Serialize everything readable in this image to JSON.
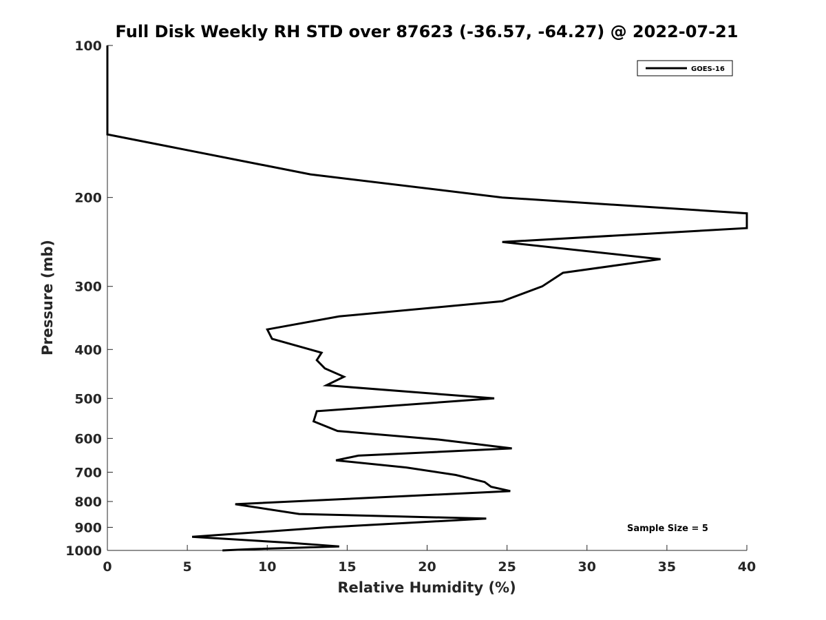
{
  "chart_data": {
    "type": "line",
    "title": "Full Disk Weekly RH STD over 87623 (-36.57, -64.27) @ 2022-07-21",
    "xlabel": "Relative Humidity (%)",
    "ylabel": "Pressure (mb)",
    "xlim": [
      0,
      40
    ],
    "ylim": [
      100,
      1000
    ],
    "yscale": "log",
    "y_reversed": true,
    "grid": false,
    "legend_position": "top-right",
    "x_ticks": [
      0,
      5,
      10,
      15,
      20,
      25,
      30,
      35,
      40
    ],
    "y_ticks": [
      100,
      200,
      300,
      400,
      500,
      600,
      700,
      800,
      900,
      1000
    ],
    "series": [
      {
        "name": "GOES-16",
        "color": "#000000",
        "points": [
          [
            0.0,
            100
          ],
          [
            0.0,
            150
          ],
          [
            12.7,
            180
          ],
          [
            24.7,
            200
          ],
          [
            40.0,
            215
          ],
          [
            40.0,
            230
          ],
          [
            24.7,
            245
          ],
          [
            34.6,
            265
          ],
          [
            28.5,
            282
          ],
          [
            27.2,
            300
          ],
          [
            24.7,
            321
          ],
          [
            14.5,
            344
          ],
          [
            10.0,
            365
          ],
          [
            10.3,
            381
          ],
          [
            13.4,
            406
          ],
          [
            13.1,
            420
          ],
          [
            13.6,
            436
          ],
          [
            14.8,
            453
          ],
          [
            13.7,
            471
          ],
          [
            24.2,
            500
          ],
          [
            13.1,
            530
          ],
          [
            12.9,
            555
          ],
          [
            14.4,
            580
          ],
          [
            20.7,
            603
          ],
          [
            25.3,
            628
          ],
          [
            15.7,
            649
          ],
          [
            14.3,
            663
          ],
          [
            18.7,
            685
          ],
          [
            21.8,
            709
          ],
          [
            23.6,
            732
          ],
          [
            24.0,
            748
          ],
          [
            25.2,
            763
          ],
          [
            8.0,
            810
          ],
          [
            12.0,
            847
          ],
          [
            23.7,
            865
          ],
          [
            13.7,
            900
          ],
          [
            5.3,
            940
          ],
          [
            11.3,
            965
          ],
          [
            14.5,
            982
          ],
          [
            9.0,
            994
          ],
          [
            7.2,
            1000
          ]
        ]
      }
    ],
    "annotations": [
      "Sample Size = 5"
    ]
  }
}
